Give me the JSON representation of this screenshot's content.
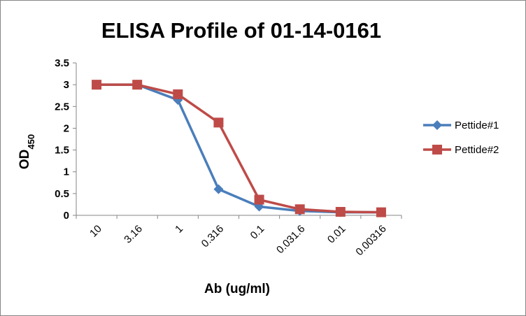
{
  "chart_data": {
    "type": "line",
    "title": "ELISA Profile of 01-14-0161",
    "xlabel": "Ab (ug/ml)",
    "ylabel_main": "OD",
    "ylabel_sub": "450",
    "categories": [
      "10",
      "3.16",
      "1",
      "0.316",
      "0.1",
      "0.031.6",
      "0.01",
      "0.00316"
    ],
    "ylim": [
      0,
      3.5
    ],
    "yticks": [
      0,
      0.5,
      1,
      1.5,
      2,
      2.5,
      3,
      3.5
    ],
    "ytick_labels": [
      "0",
      "0.5",
      "1",
      "1.5",
      "2",
      "2.5",
      "3",
      "3.5"
    ],
    "grid": false,
    "legend_position": "right",
    "series": [
      {
        "name": "Pettide#1",
        "color": "#4a7ebb",
        "marker": "diamond",
        "values": [
          3.0,
          3.0,
          2.65,
          0.6,
          0.2,
          0.1,
          0.07,
          0.07
        ]
      },
      {
        "name": "Pettide#2",
        "color": "#be4b48",
        "marker": "square",
        "values": [
          3.0,
          3.0,
          2.78,
          2.13,
          0.36,
          0.14,
          0.08,
          0.07
        ]
      }
    ]
  }
}
